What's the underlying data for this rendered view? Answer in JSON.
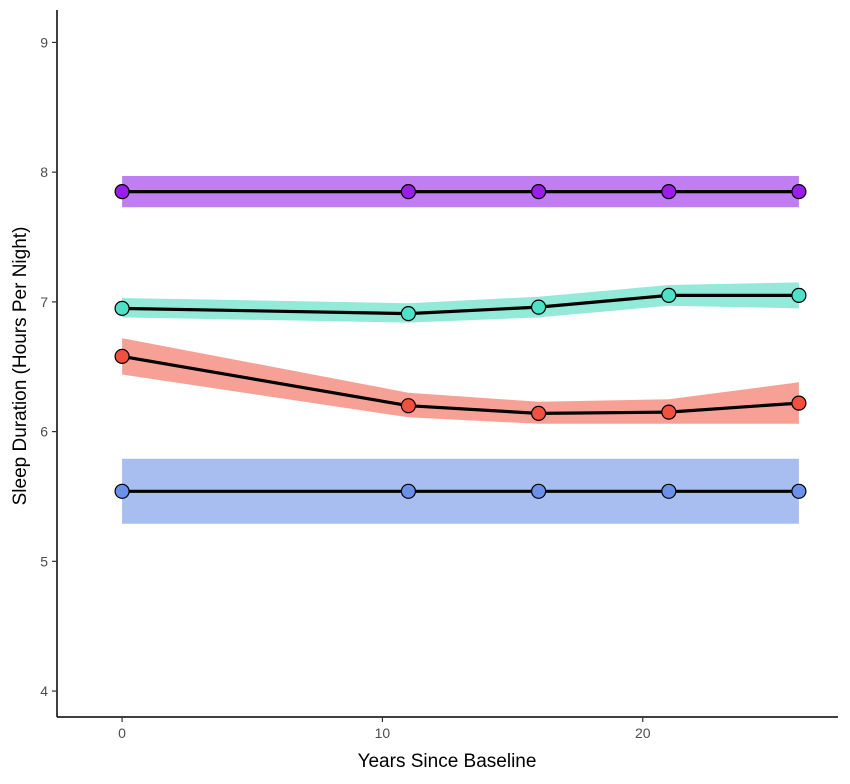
{
  "chart_data": {
    "type": "line",
    "xlabel": "Years Since Baseline",
    "ylabel": "Sleep Duration (Hours Per Night)",
    "xlim": [
      -2.5,
      27.5
    ],
    "ylim": [
      3.8,
      9.25
    ],
    "x_ticks": [
      0,
      10,
      20
    ],
    "y_ticks": [
      4,
      5,
      6,
      7,
      8,
      9
    ],
    "grid": false,
    "legend": "none",
    "x": [
      0,
      11,
      16,
      21,
      26
    ],
    "series": [
      {
        "color": "#9b1de8",
        "ribbon_color": "#c07ef2",
        "values": [
          7.85,
          7.85,
          7.85,
          7.85,
          7.85
        ],
        "lower": [
          7.73,
          7.73,
          7.73,
          7.73,
          7.73
        ],
        "upper": [
          7.97,
          7.97,
          7.97,
          7.97,
          7.97
        ]
      },
      {
        "color": "#4fe0c8",
        "ribbon_color": "#93ead9",
        "values": [
          6.95,
          6.91,
          6.96,
          7.05,
          7.05
        ],
        "lower": [
          6.88,
          6.84,
          6.88,
          6.97,
          6.95
        ],
        "upper": [
          7.03,
          6.99,
          7.04,
          7.13,
          7.15
        ]
      },
      {
        "color": "#f2503f",
        "ribbon_color": "#f7a196",
        "values": [
          6.58,
          6.2,
          6.14,
          6.15,
          6.22
        ],
        "lower": [
          6.44,
          6.11,
          6.06,
          6.06,
          6.06
        ],
        "upper": [
          6.72,
          6.3,
          6.23,
          6.25,
          6.38
        ]
      },
      {
        "color": "#6b90e8",
        "ribbon_color": "#a8bdf0",
        "values": [
          5.54,
          5.54,
          5.54,
          5.54,
          5.54
        ],
        "lower": [
          5.29,
          5.29,
          5.29,
          5.29,
          5.29
        ],
        "upper": [
          5.79,
          5.79,
          5.79,
          5.79,
          5.79
        ]
      }
    ]
  }
}
